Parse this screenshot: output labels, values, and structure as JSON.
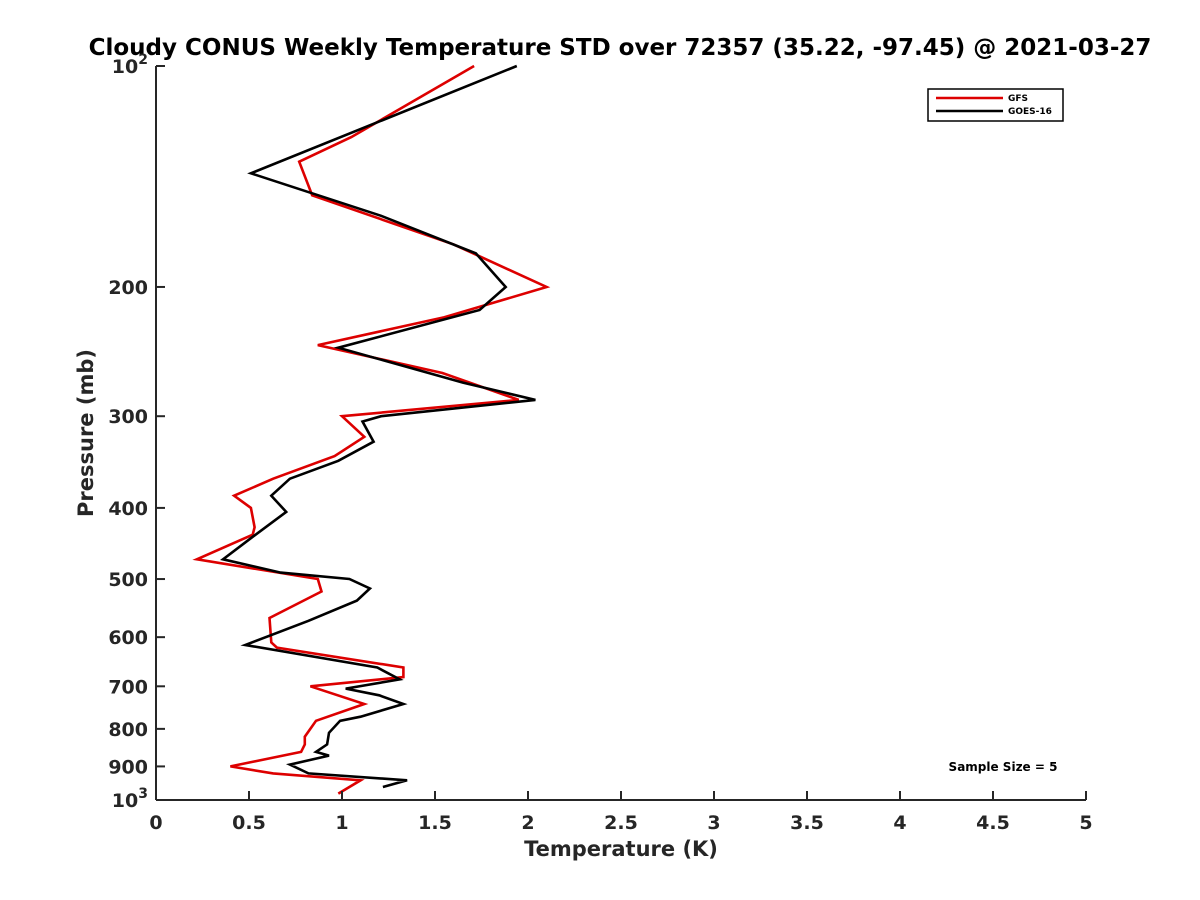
{
  "chart_data": {
    "type": "line",
    "title": "Cloudy CONUS Weekly Temperature STD over 72357 (35.22, -97.45) @ 2021-03-27",
    "xlabel": "Temperature (K)",
    "ylabel": "Pressure (mb)",
    "xlim": [
      0,
      5
    ],
    "ylim": [
      100,
      1000
    ],
    "yscale": "log",
    "y_reversed": true,
    "x_ticks": [
      0,
      0.5,
      1,
      1.5,
      2,
      2.5,
      3,
      3.5,
      4,
      4.5,
      5
    ],
    "x_tick_labels": [
      "0",
      "0.5",
      "1",
      "1.5",
      "2",
      "2.5",
      "3",
      "3.5",
      "4",
      "4.5",
      "5"
    ],
    "y_ticks": [
      100,
      200,
      300,
      400,
      500,
      600,
      700,
      800,
      900,
      1000
    ],
    "y_tick_labels": [
      "10^2",
      "200",
      "300",
      "400",
      "500",
      "600",
      "700",
      "800",
      "900",
      "10^3"
    ],
    "grid": false,
    "legend_placement": "top-right",
    "annotation": "Sample Size = 5",
    "series": [
      {
        "name": "GFS",
        "color": "#dd0000",
        "points": [
          [
            1.71,
            100
          ],
          [
            1.05,
            125
          ],
          [
            0.77,
            135
          ],
          [
            0.84,
            150
          ],
          [
            1.6,
            175
          ],
          [
            2.1,
            200
          ],
          [
            1.55,
            220
          ],
          [
            0.87,
            240
          ],
          [
            1.54,
            262
          ],
          [
            1.95,
            285
          ],
          [
            1.0,
            300
          ],
          [
            1.12,
            320
          ],
          [
            0.96,
            340
          ],
          [
            0.63,
            365
          ],
          [
            0.42,
            385
          ],
          [
            0.51,
            400
          ],
          [
            0.53,
            425
          ],
          [
            0.52,
            435
          ],
          [
            0.22,
            470
          ],
          [
            0.87,
            500
          ],
          [
            0.89,
            520
          ],
          [
            0.61,
            565
          ],
          [
            0.62,
            610
          ],
          [
            0.65,
            620
          ],
          [
            1.33,
            660
          ],
          [
            1.33,
            680
          ],
          [
            0.83,
            700
          ],
          [
            1.12,
            740
          ],
          [
            0.86,
            780
          ],
          [
            0.8,
            820
          ],
          [
            0.8,
            840
          ],
          [
            0.78,
            860
          ],
          [
            0.4,
            900
          ],
          [
            0.63,
            920
          ],
          [
            1.1,
            940
          ],
          [
            0.98,
            980
          ]
        ]
      },
      {
        "name": "GOES-16",
        "color": "#000000",
        "points": [
          [
            1.94,
            100
          ],
          [
            0.51,
            140
          ],
          [
            1.21,
            160
          ],
          [
            1.72,
            180
          ],
          [
            1.88,
            200
          ],
          [
            1.74,
            215
          ],
          [
            0.98,
            242
          ],
          [
            1.65,
            270
          ],
          [
            2.04,
            285
          ],
          [
            1.21,
            300
          ],
          [
            1.11,
            305
          ],
          [
            1.17,
            325
          ],
          [
            0.98,
            345
          ],
          [
            0.72,
            365
          ],
          [
            0.62,
            385
          ],
          [
            0.7,
            405
          ],
          [
            0.52,
            438
          ],
          [
            0.36,
            470
          ],
          [
            0.67,
            490
          ],
          [
            1.04,
            500
          ],
          [
            1.15,
            515
          ],
          [
            1.08,
            535
          ],
          [
            0.82,
            570
          ],
          [
            0.48,
            615
          ],
          [
            1.19,
            660
          ],
          [
            1.31,
            685
          ],
          [
            1.02,
            705
          ],
          [
            1.2,
            720
          ],
          [
            1.33,
            740
          ],
          [
            1.1,
            770
          ],
          [
            0.99,
            780
          ],
          [
            0.93,
            810
          ],
          [
            0.92,
            840
          ],
          [
            0.86,
            860
          ],
          [
            0.93,
            870
          ],
          [
            0.72,
            895
          ],
          [
            0.82,
            920
          ],
          [
            1.35,
            940
          ],
          [
            1.22,
            960
          ]
        ]
      }
    ]
  }
}
